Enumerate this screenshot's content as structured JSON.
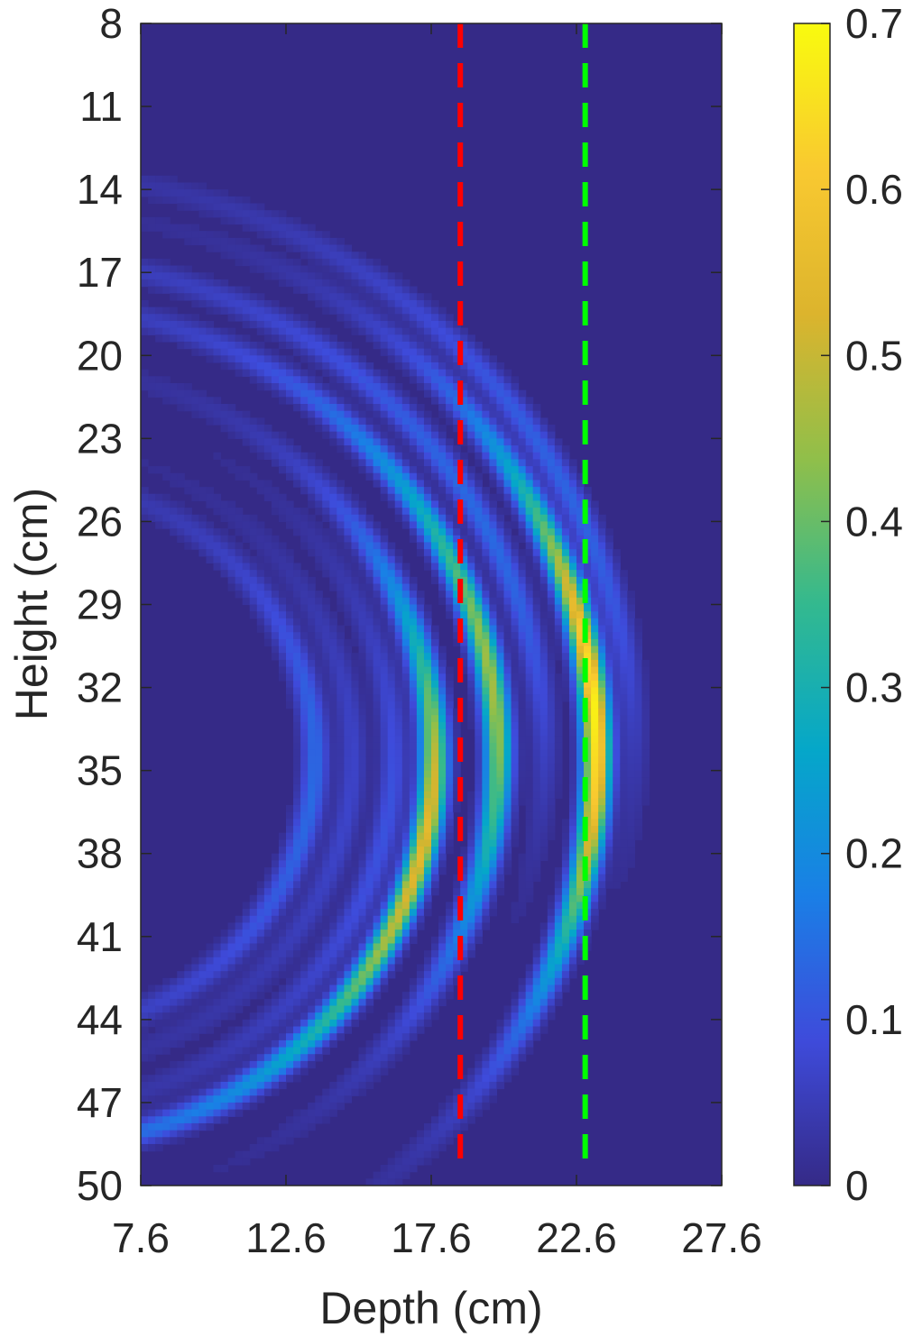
{
  "chart_data": {
    "type": "heatmap",
    "title": "",
    "xlabel": "Depth (cm)",
    "ylabel": "Height (cm)",
    "xlim": [
      7.6,
      27.6
    ],
    "ylim": [
      8,
      50
    ],
    "y_reversed": true,
    "x_ticks": [
      "7.6",
      "12.6",
      "17.6",
      "22.6",
      "27.6"
    ],
    "x_tick_values": [
      7.6,
      12.6,
      17.6,
      22.6,
      27.6
    ],
    "y_ticks": [
      "8",
      "11",
      "14",
      "17",
      "20",
      "23",
      "26",
      "29",
      "32",
      "35",
      "38",
      "41",
      "44",
      "47",
      "50"
    ],
    "y_tick_values": [
      8,
      11,
      14,
      17,
      20,
      23,
      26,
      29,
      32,
      35,
      38,
      41,
      44,
      47,
      50
    ],
    "colormap": "parula",
    "colorbar": {
      "range": [
        0,
        0.7
      ],
      "ticks": [
        "0",
        "0.1",
        "0.2",
        "0.3",
        "0.4",
        "0.5",
        "0.6",
        "0.7"
      ],
      "tick_values": [
        0,
        0.1,
        0.2,
        0.3,
        0.4,
        0.5,
        0.6,
        0.7
      ]
    },
    "reference_lines": [
      {
        "x": 18.6,
        "y_range": [
          8,
          49.2
        ],
        "color": "#ff0000",
        "style": "dashed"
      },
      {
        "x": 22.9,
        "y_range": [
          8,
          49.2
        ],
        "color": "#00ff00",
        "style": "dashed"
      }
    ],
    "arc_center": {
      "x": 3.5,
      "y": 34.5
    },
    "arcs": [
      {
        "radius": 10.1,
        "peak": 0.14,
        "peak_y": 35.5
      },
      {
        "radius": 11.4,
        "peak": 0.07,
        "peak_y": 36.0
      },
      {
        "radius": 12.8,
        "peak": 0.1,
        "peak_y": 37.0
      },
      {
        "radius": 14.2,
        "peak": 0.55,
        "peak_y": 37.5
      },
      {
        "radius": 16.4,
        "peak": 0.46,
        "peak_y": 32.0
      },
      {
        "radius": 18.0,
        "peak": 0.14,
        "peak_y": 26.0
      },
      {
        "radius": 19.8,
        "peak": 0.68,
        "peak_y": 33.0
      },
      {
        "radius": 21.1,
        "peak": 0.13,
        "peak_y": 25.0
      }
    ]
  }
}
